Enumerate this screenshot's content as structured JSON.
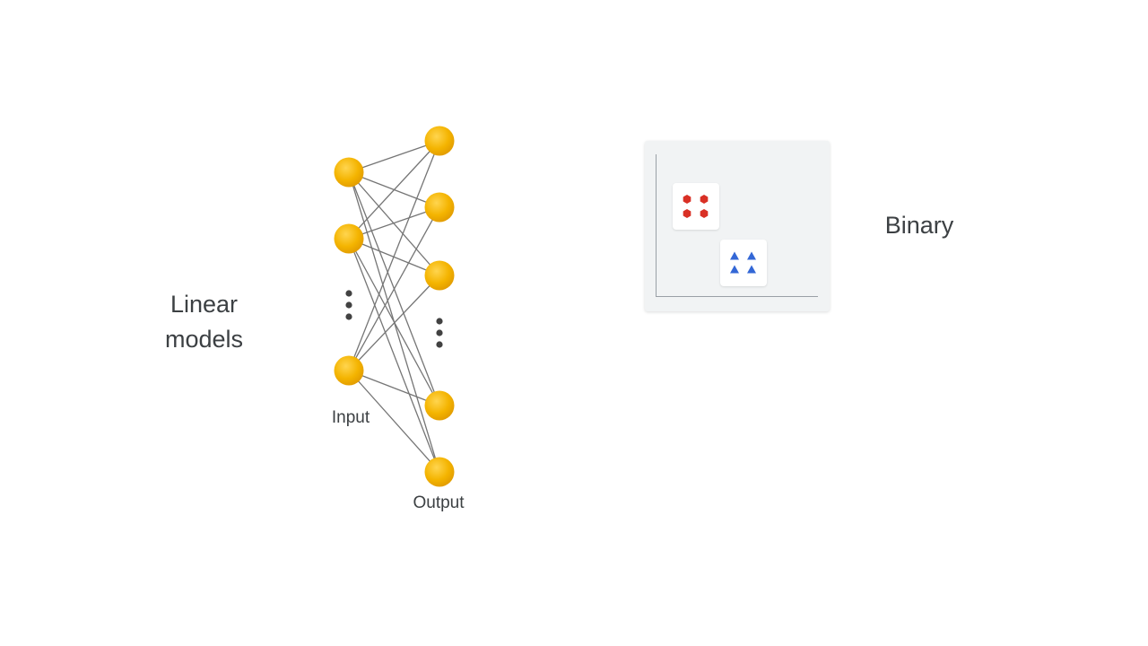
{
  "slide": {
    "title_line1": "Linear",
    "title_line2": "models"
  },
  "network": {
    "input_label": "Input",
    "output_label": "Output",
    "node_color": "#f4b400",
    "edge_color": "#757575",
    "ellipsis_color": "#424242"
  },
  "classification": {
    "label": "Binary",
    "class_a_color": "#d93025",
    "class_b_color": "#3367d6",
    "class_a_shape": "hexagon",
    "class_b_shape": "triangle"
  }
}
